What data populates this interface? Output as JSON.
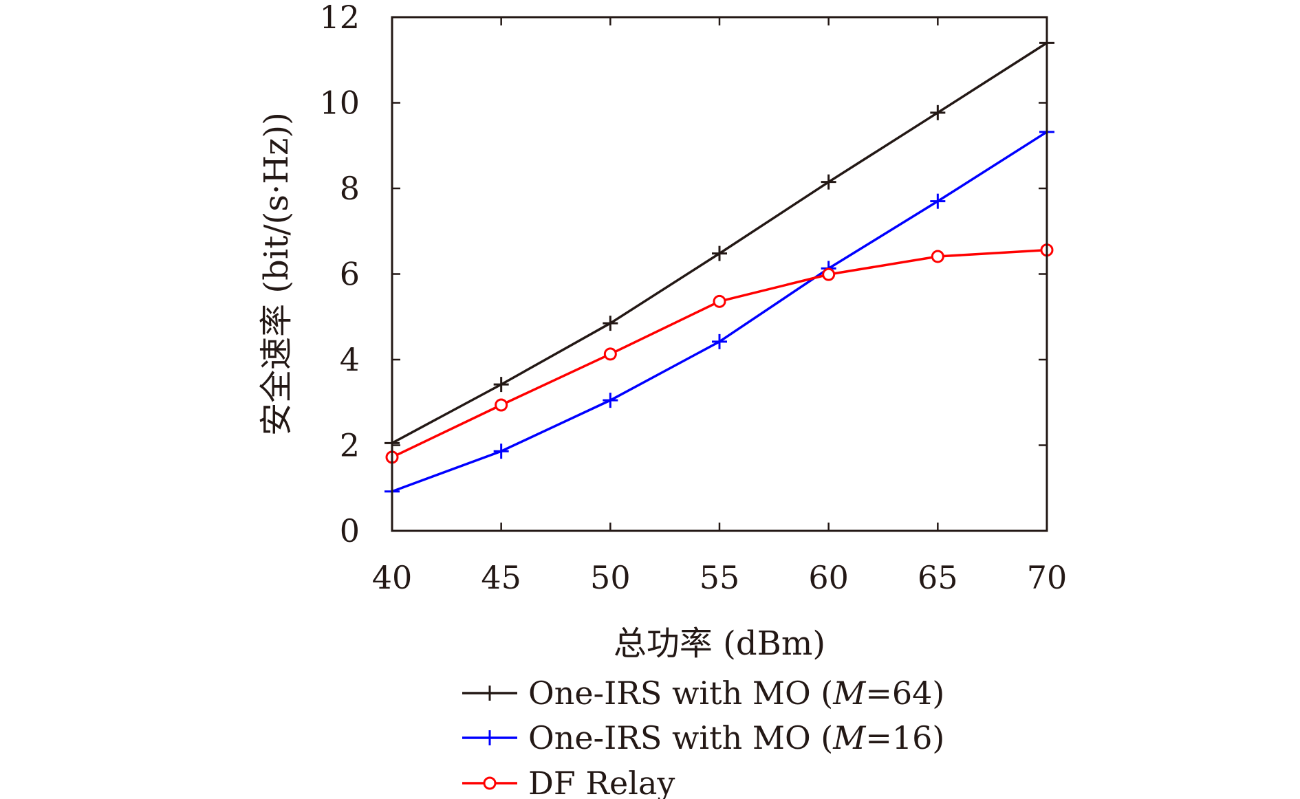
{
  "chart_data": {
    "type": "line",
    "xlabel": "总功率 (dBm)",
    "ylabel": "安全速率 (bit/(s·Hz))",
    "x": [
      40,
      45,
      50,
      55,
      60,
      65,
      70
    ],
    "xlim": [
      40,
      70
    ],
    "ylim": [
      0,
      12
    ],
    "xticks": [
      "40",
      "45",
      "50",
      "55",
      "60",
      "65",
      "70"
    ],
    "yticks": [
      "0",
      "2",
      "4",
      "6",
      "8",
      "10",
      "12"
    ],
    "grid": false,
    "legend_position": "bottom",
    "series": [
      {
        "name": "One-IRS with MO (M=64)",
        "legend_parts": {
          "prefix": "One-IRS with MO (",
          "italic": "M",
          "suffix": "=64)"
        },
        "marker": "plus",
        "color": "#231815",
        "values": [
          2.05,
          3.42,
          4.85,
          6.48,
          8.15,
          9.77,
          11.4
        ]
      },
      {
        "name": "One-IRS with MO (M=16)",
        "legend_parts": {
          "prefix": "One-IRS with MO (",
          "italic": "M",
          "suffix": "=16)"
        },
        "marker": "plus",
        "color": "#0000ff",
        "values": [
          0.92,
          1.86,
          3.05,
          4.42,
          6.13,
          7.7,
          9.32
        ]
      },
      {
        "name": "DF Relay",
        "legend_parts": {
          "prefix": "DF Relay",
          "italic": "",
          "suffix": ""
        },
        "marker": "circle",
        "color": "#ff0000",
        "values": [
          1.72,
          2.94,
          4.13,
          5.36,
          5.99,
          6.41,
          6.56
        ]
      }
    ]
  }
}
